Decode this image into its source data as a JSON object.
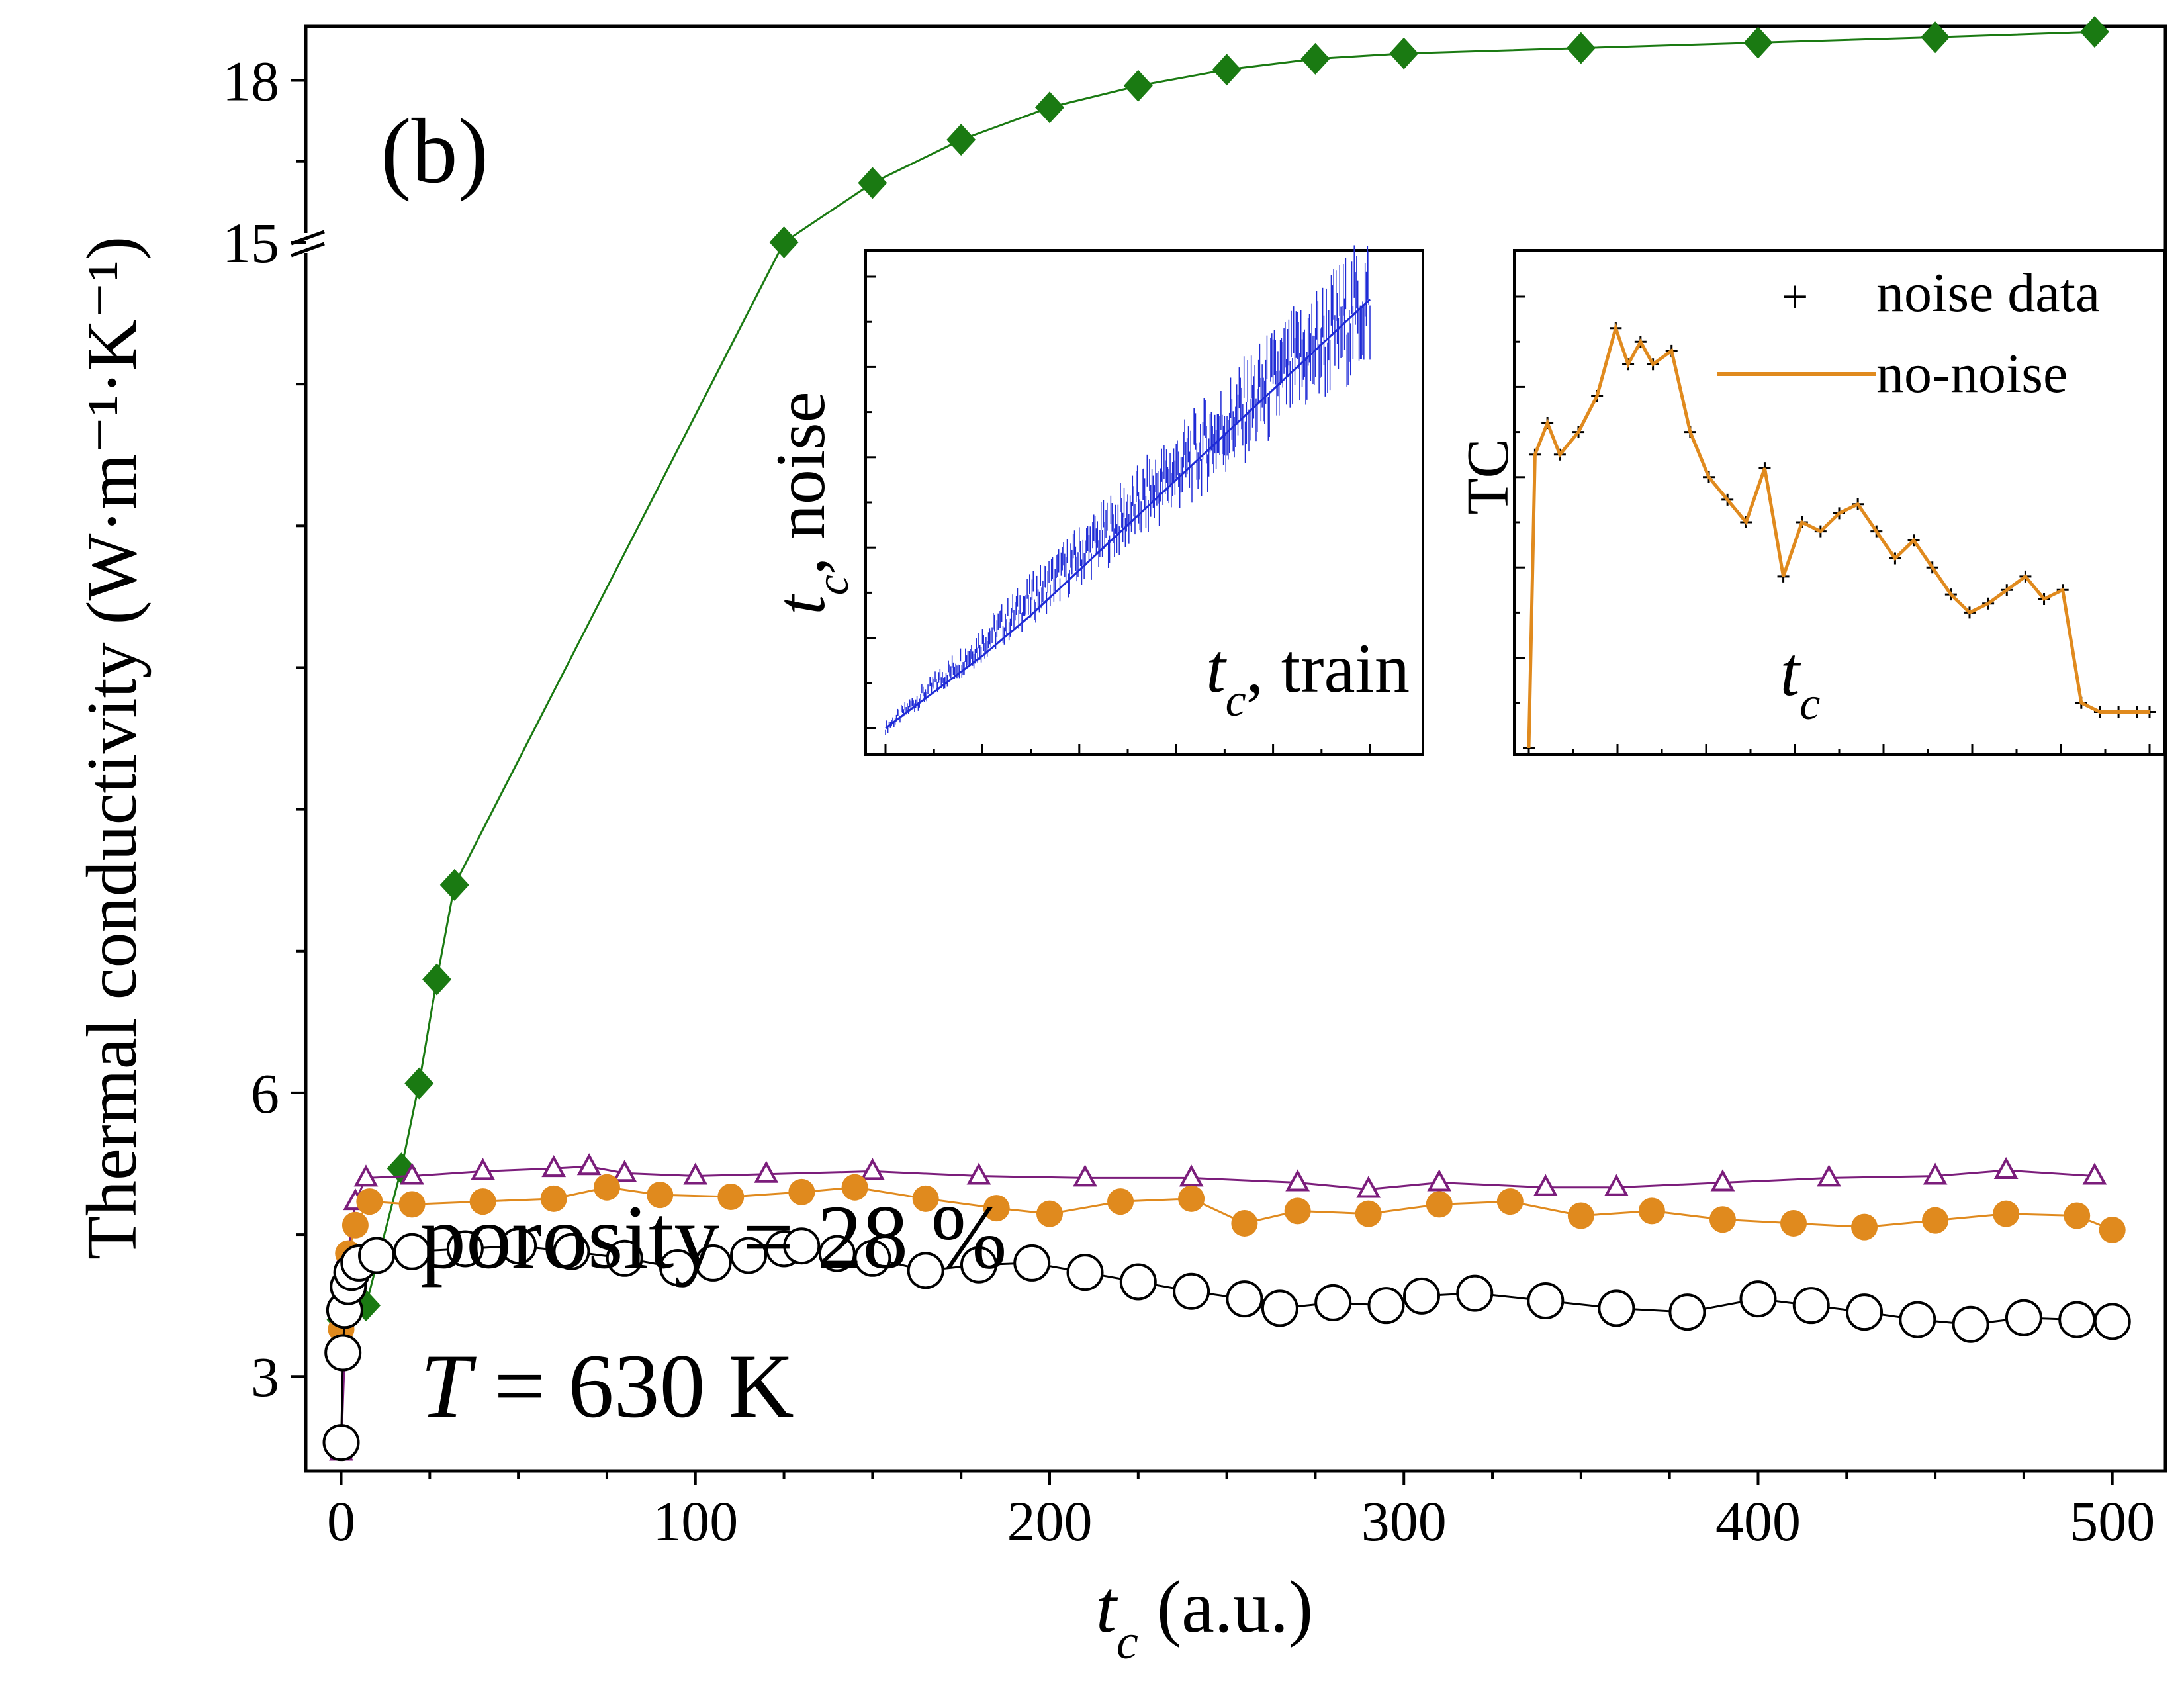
{
  "chart_data": {
    "type": "scatter",
    "panel_label": "(b)",
    "xlabel_main": "t",
    "xlabel_sub": "c",
    "xlabel_rest": " (a.u.)",
    "ylabel": "Thermal conductivity (W·m⁻¹·K⁻¹)",
    "xlim": [
      -10,
      515
    ],
    "ylim_lower": [
      2.0,
      15.0
    ],
    "ylim_upper": [
      15.0,
      19.0
    ],
    "axis_break_at": 15,
    "x_ticks": [
      0,
      100,
      200,
      300,
      400,
      500
    ],
    "y_ticks_lower": [
      3,
      6
    ],
    "y_ticks_upper": [
      15,
      18
    ],
    "annotation_porosity": "porosity = 28 %",
    "annotation_T_var": "T",
    "annotation_T_rest": " = 630 K",
    "colors": {
      "green": "#1a7a12",
      "purple": "#7b1d7b",
      "orange": "#e08a1e",
      "black": "#000000",
      "blue": "#1f2bd6"
    },
    "series": [
      {
        "marker": "diamond",
        "color": "#1a7a12",
        "x": [
          0,
          7,
          17,
          22,
          27,
          32,
          125,
          150,
          175,
          200,
          225,
          250,
          275,
          300,
          350,
          400,
          450,
          495
        ],
        "y": [
          3.6,
          3.75,
          5.2,
          6.1,
          7.2,
          8.2,
          15.0,
          16.1,
          16.9,
          17.5,
          17.9,
          18.2,
          18.4,
          18.5,
          18.6,
          18.7,
          18.8,
          18.9
        ]
      },
      {
        "marker": "triangle-open",
        "color": "#7b1d7b",
        "x": [
          0,
          2,
          4,
          7,
          20,
          40,
          60,
          70,
          80,
          100,
          120,
          150,
          180,
          210,
          240,
          270,
          290,
          310,
          340,
          360,
          390,
          420,
          450,
          470,
          495
        ],
        "y": [
          2.2,
          4.3,
          4.85,
          5.1,
          5.12,
          5.17,
          5.2,
          5.22,
          5.15,
          5.12,
          5.14,
          5.17,
          5.12,
          5.1,
          5.1,
          5.05,
          4.98,
          5.05,
          5.0,
          5.0,
          5.05,
          5.1,
          5.12,
          5.18,
          5.12
        ]
      },
      {
        "marker": "circle-filled",
        "color": "#e08a1e",
        "x": [
          0,
          2,
          4,
          8,
          20,
          40,
          60,
          75,
          90,
          110,
          130,
          145,
          165,
          185,
          200,
          220,
          240,
          255,
          270,
          290,
          310,
          330,
          350,
          370,
          390,
          410,
          430,
          450,
          470,
          490,
          500
        ],
        "y": [
          3.5,
          4.3,
          4.6,
          4.85,
          4.82,
          4.85,
          4.88,
          5.0,
          4.92,
          4.9,
          4.95,
          5.0,
          4.88,
          4.78,
          4.72,
          4.85,
          4.88,
          4.62,
          4.75,
          4.72,
          4.82,
          4.85,
          4.7,
          4.75,
          4.66,
          4.62,
          4.58,
          4.65,
          4.72,
          4.7,
          4.55
        ]
      },
      {
        "marker": "circle-open",
        "color": "#000000",
        "x": [
          0,
          0.5,
          1,
          2,
          3,
          5,
          10,
          20,
          35,
          50,
          65,
          80,
          95,
          105,
          115,
          125,
          130,
          140,
          150,
          165,
          180,
          195,
          210,
          225,
          240,
          255,
          265,
          280,
          295,
          305,
          320,
          340,
          360,
          380,
          400,
          415,
          430,
          445,
          460,
          475,
          490,
          500
        ],
        "y": [
          2.3,
          3.25,
          3.7,
          3.95,
          4.1,
          4.2,
          4.28,
          4.32,
          4.35,
          4.38,
          4.32,
          4.25,
          4.15,
          4.2,
          4.28,
          4.35,
          4.38,
          4.3,
          4.25,
          4.12,
          4.18,
          4.2,
          4.1,
          4.0,
          3.9,
          3.82,
          3.72,
          3.78,
          3.75,
          3.85,
          3.88,
          3.8,
          3.72,
          3.68,
          3.82,
          3.75,
          3.68,
          3.6,
          3.55,
          3.62,
          3.6,
          3.58
        ]
      }
    ],
    "insets": [
      {
        "type": "line",
        "xlabel_var": "t",
        "xlabel_sub": "c",
        "xlabel_rest": ", train",
        "ylabel_var": "t",
        "ylabel_sub": "c",
        "ylabel_rest": ", noise",
        "color": "#1f2bd6",
        "x": [
          0,
          10,
          20,
          30,
          40,
          50,
          60,
          70,
          80,
          90,
          100
        ],
        "y": [
          0,
          8,
          16,
          25,
          35,
          45,
          55,
          65,
          75,
          85,
          95
        ]
      },
      {
        "type": "line",
        "xlabel_var": "t",
        "xlabel_sub": "c",
        "ylabel": "TC",
        "legend_noise": "noise data",
        "legend_clean": "no-noise",
        "noise_color": "#000000",
        "clean_color": "#e08a1e",
        "x": [
          0,
          1,
          3,
          5,
          8,
          11,
          14,
          16,
          18,
          20,
          23,
          26,
          29,
          32,
          35,
          38,
          41,
          44,
          47,
          50,
          53,
          56,
          59,
          62,
          65,
          68,
          71,
          74,
          77,
          80,
          83,
          86,
          89,
          92,
          95,
          98,
          100
        ],
        "y": [
          0,
          65,
          72,
          65,
          70,
          78,
          93,
          85,
          90,
          85,
          88,
          70,
          60,
          55,
          50,
          62,
          38,
          50,
          48,
          52,
          54,
          48,
          42,
          46,
          40,
          34,
          30,
          32,
          35,
          38,
          33,
          35,
          10,
          8,
          8,
          8,
          8
        ]
      }
    ]
  }
}
